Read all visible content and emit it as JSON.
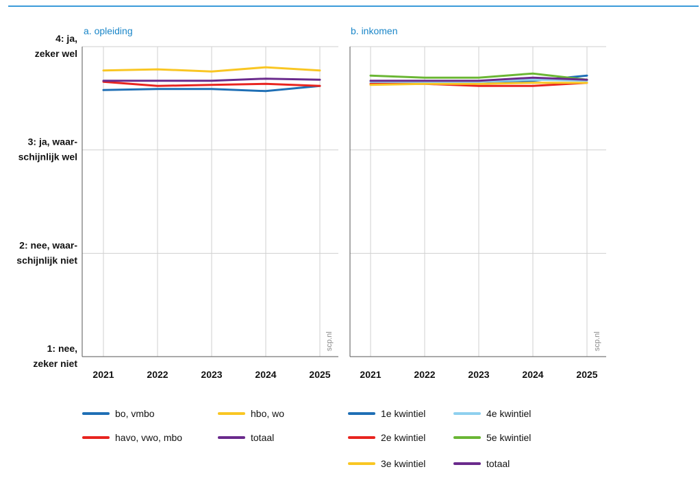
{
  "chart_data": [
    {
      "type": "line",
      "title": "a. opleiding",
      "watermark": "scp.nl",
      "xlabel": "",
      "ylabel": "",
      "x": [
        "2021",
        "2022",
        "2023",
        "2024",
        "2025"
      ],
      "ylim": [
        1,
        4
      ],
      "y_ticks": [
        {
          "value": 4,
          "label": [
            "4: ja,",
            "zeker wel"
          ]
        },
        {
          "value": 3,
          "label": [
            "3: ja, waar-",
            "schijnlijk wel"
          ]
        },
        {
          "value": 2,
          "label": [
            "2: nee, waar-",
            "schijnlijk niet"
          ]
        },
        {
          "value": 1,
          "label": [
            "1: nee,",
            "zeker niet"
          ]
        }
      ],
      "grid": true,
      "series": [
        {
          "name": "bo, vmbo",
          "color": "#1f6fb5",
          "values": [
            3.58,
            3.59,
            3.59,
            3.57,
            3.62
          ]
        },
        {
          "name": "havo, vwo, mbo",
          "color": "#e8241f",
          "values": [
            3.66,
            3.62,
            3.63,
            3.64,
            3.62
          ]
        },
        {
          "name": "hbo, wo",
          "color": "#f9c623",
          "values": [
            3.77,
            3.78,
            3.76,
            3.8,
            3.77
          ]
        },
        {
          "name": "totaal",
          "color": "#6a2a8c",
          "values": [
            3.67,
            3.67,
            3.67,
            3.69,
            3.68
          ]
        }
      ]
    },
    {
      "type": "line",
      "title": "b. inkomen",
      "watermark": "scp.nl",
      "xlabel": "",
      "ylabel": "",
      "x": [
        "2021",
        "2022",
        "2023",
        "2024",
        "2025"
      ],
      "ylim": [
        1,
        4
      ],
      "grid": true,
      "series": [
        {
          "name": "1e kwintiel",
          "color": "#1f6fb5",
          "values": [
            3.66,
            3.66,
            3.66,
            3.67,
            3.72
          ]
        },
        {
          "name": "2e kwintiel",
          "color": "#e8241f",
          "values": [
            3.64,
            3.64,
            3.62,
            3.62,
            3.65
          ]
        },
        {
          "name": "3e kwintiel",
          "color": "#f9c623",
          "values": [
            3.63,
            3.64,
            3.64,
            3.65,
            3.65
          ]
        },
        {
          "name": "4e kwintiel",
          "color": "#8fd0ef",
          "values": [
            3.66,
            3.66,
            3.66,
            3.68,
            3.67
          ]
        },
        {
          "name": "5e kwintiel",
          "color": "#6ab634",
          "values": [
            3.72,
            3.7,
            3.7,
            3.74,
            3.68
          ]
        },
        {
          "name": "totaal",
          "color": "#6a2a8c",
          "values": [
            3.67,
            3.67,
            3.67,
            3.7,
            3.68
          ]
        }
      ]
    }
  ],
  "legends": [
    {
      "items": [
        {
          "label": "bo, vmbo",
          "color": "#1f6fb5"
        },
        {
          "label": "hbo, wo",
          "color": "#f9c623"
        },
        {
          "label": "havo, vwo, mbo",
          "color": "#e8241f"
        },
        {
          "label": "totaal",
          "color": "#6a2a8c"
        }
      ]
    },
    {
      "items": [
        {
          "label": "1e kwintiel",
          "color": "#1f6fb5"
        },
        {
          "label": "4e kwintiel",
          "color": "#8fd0ef"
        },
        {
          "label": "2e kwintiel",
          "color": "#e8241f"
        },
        {
          "label": "5e kwintiel",
          "color": "#6ab634"
        },
        {
          "label": "3e kwintiel",
          "color": "#f9c623"
        },
        {
          "label": "totaal",
          "color": "#6a2a8c"
        }
      ]
    }
  ],
  "accent_color": "#3a9ad9"
}
